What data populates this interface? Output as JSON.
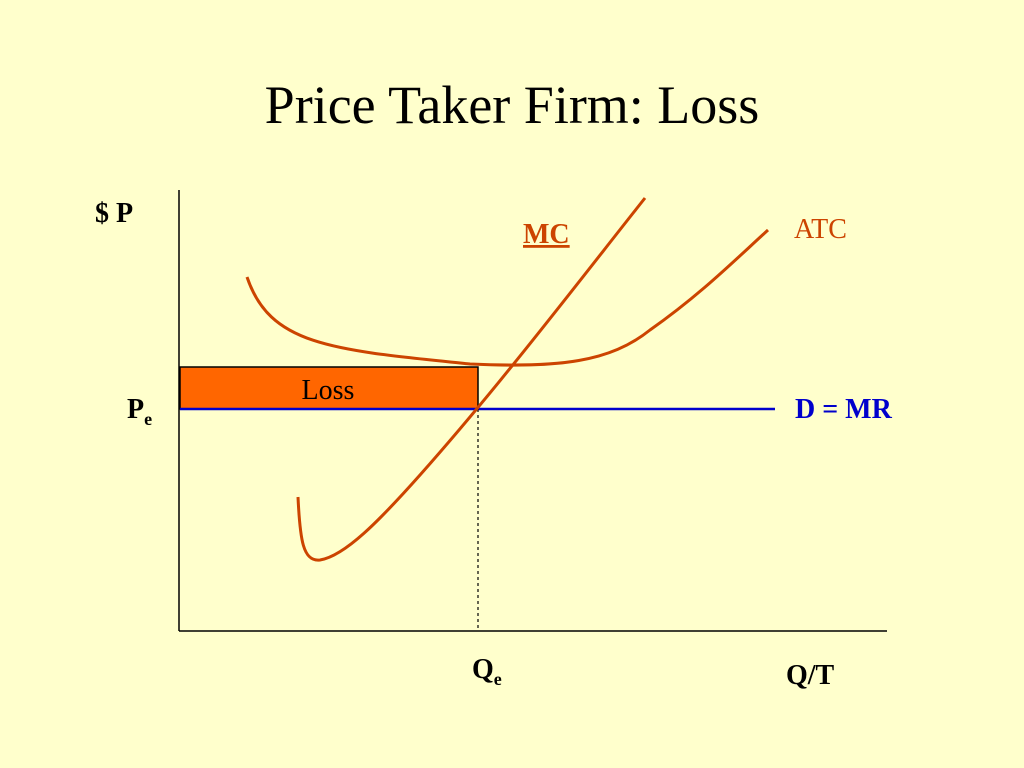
{
  "title": "Price Taker Firm: Loss",
  "axes": {
    "y_label": "$ P",
    "x_label": "Q/T"
  },
  "curves": {
    "mc_label": "MC",
    "atc_label": "ATC",
    "demand_label": "D = MR"
  },
  "markers": {
    "price": {
      "base": "P",
      "subscript": "e"
    },
    "quantity": {
      "base": "Q",
      "subscript": "e"
    }
  },
  "loss_area": {
    "label": "Loss"
  },
  "colors": {
    "background": "#ffffcc",
    "cost_curves": "#cc4400",
    "demand_line": "#0000cc",
    "loss_fill": "#ff6600",
    "axes": "#000000"
  }
}
